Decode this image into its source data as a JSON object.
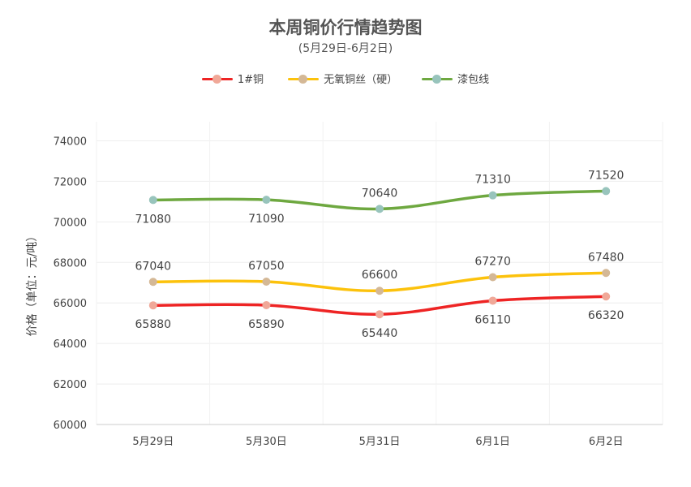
{
  "chart_data": {
    "type": "line",
    "title": "本周铜价行情趋势图",
    "subtitle": "(5月29日-6月2日)",
    "ylabel": "价格（单位：元/吨）",
    "xlabel": "",
    "categories": [
      "5月29日",
      "5月30日",
      "5月31日",
      "6月1日",
      "6月2日"
    ],
    "ylim": [
      60000,
      74000
    ],
    "yticks": [
      60000,
      62000,
      64000,
      66000,
      68000,
      70000,
      72000,
      74000
    ],
    "grid": true,
    "legend_position": "top-center",
    "series": [
      {
        "name": "1#铜",
        "values": [
          65880,
          65890,
          65440,
          66110,
          66320
        ],
        "line_color": "#ee2424",
        "marker_color": "#f0a898",
        "label_position": "below"
      },
      {
        "name": "无氧铜丝（硬）",
        "values": [
          67040,
          67050,
          66600,
          67270,
          67480
        ],
        "line_color": "#fcc20c",
        "marker_color": "#d4b896",
        "label_position": "above"
      },
      {
        "name": "漆包线",
        "values": [
          71080,
          71090,
          70640,
          71310,
          71520
        ],
        "line_color": "#6ea840",
        "marker_color": "#98c4bc",
        "label_position": "mixed"
      }
    ]
  }
}
